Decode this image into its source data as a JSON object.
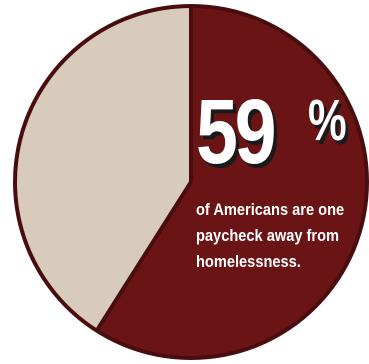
{
  "chart_data": {
    "type": "pie",
    "slices": [
      {
        "label": "",
        "value": 59,
        "color": "#6b1416"
      },
      {
        "label": "",
        "value": 41,
        "color": "#d9cbbb"
      }
    ],
    "outline_color": "#4a0d0f"
  },
  "headline": {
    "number": "59",
    "percent_sign": "%"
  },
  "caption": {
    "line1": "of Americans are one",
    "line2": "paycheck away from",
    "line3": "homelessness."
  }
}
